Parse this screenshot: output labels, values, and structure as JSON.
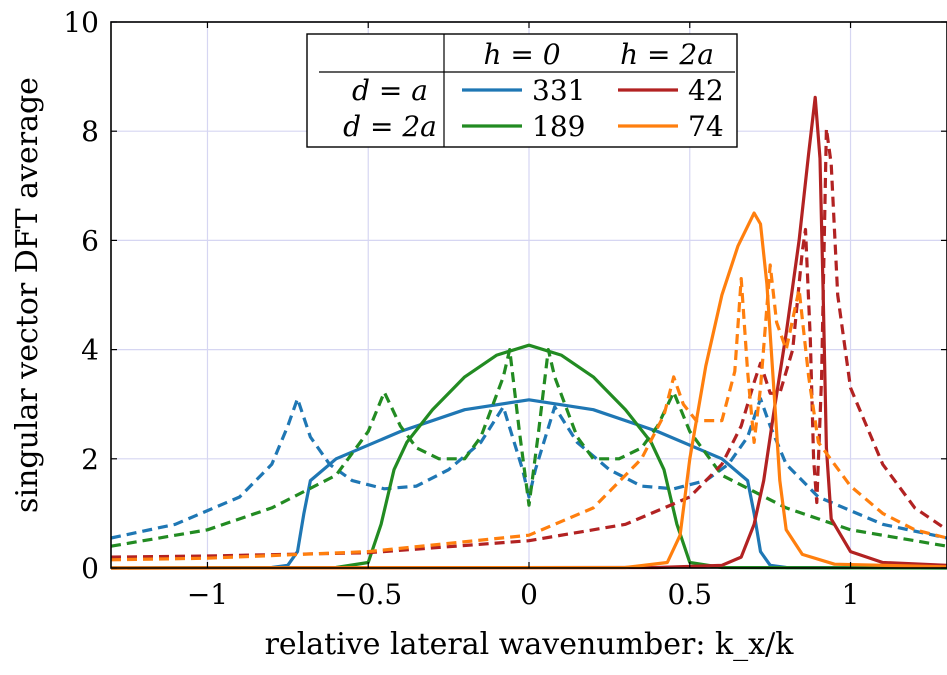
{
  "chart_data": {
    "type": "line",
    "xlabel": "relative lateral wavenumber: k_x/k",
    "ylabel": "singular vector DFT average",
    "xlim": [
      -1.3,
      1.3
    ],
    "ylim": [
      0,
      10
    ],
    "x_ticks": [
      "−1",
      "−0.5",
      "0",
      "0.5",
      "1"
    ],
    "y_ticks": [
      "0",
      "2",
      "4",
      "6",
      "8",
      "10"
    ],
    "grid": true,
    "legend": {
      "placement": "top-center",
      "type": "table",
      "column_headers": [
        "h = 0",
        "h = 2a"
      ],
      "row_headers": [
        "d = a",
        "d = 2a"
      ],
      "cells": [
        [
          "331",
          "42"
        ],
        [
          "189",
          "74"
        ]
      ]
    },
    "series": [
      {
        "name": "331",
        "color": "#1f77b4",
        "style": "solid",
        "points": [
          [
            -1.3,
            0
          ],
          [
            -0.8,
            0.01
          ],
          [
            -0.75,
            0.05
          ],
          [
            -0.72,
            0.3
          ],
          [
            -0.7,
            1.0
          ],
          [
            -0.68,
            1.6
          ],
          [
            -0.6,
            2.0
          ],
          [
            -0.4,
            2.5
          ],
          [
            -0.2,
            2.9
          ],
          [
            0,
            3.08
          ],
          [
            0.2,
            2.9
          ],
          [
            0.4,
            2.5
          ],
          [
            0.6,
            2.0
          ],
          [
            0.68,
            1.6
          ],
          [
            0.7,
            1.0
          ],
          [
            0.72,
            0.3
          ],
          [
            0.75,
            0.05
          ],
          [
            0.8,
            0.01
          ],
          [
            1.3,
            0
          ]
        ]
      },
      {
        "name": "331",
        "color": "#1f77b4",
        "style": "dashed",
        "points": [
          [
            -1.3,
            0.55
          ],
          [
            -1.1,
            0.8
          ],
          [
            -0.9,
            1.3
          ],
          [
            -0.8,
            1.9
          ],
          [
            -0.75,
            2.6
          ],
          [
            -0.72,
            3.1
          ],
          [
            -0.68,
            2.4
          ],
          [
            -0.62,
            1.9
          ],
          [
            -0.55,
            1.6
          ],
          [
            -0.45,
            1.45
          ],
          [
            -0.35,
            1.5
          ],
          [
            -0.25,
            1.8
          ],
          [
            -0.15,
            2.3
          ],
          [
            -0.08,
            2.95
          ],
          [
            -0.02,
            1.8
          ],
          [
            0,
            1.3
          ],
          [
            0.02,
            1.8
          ],
          [
            0.08,
            2.95
          ],
          [
            0.15,
            2.3
          ],
          [
            0.25,
            1.8
          ],
          [
            0.35,
            1.5
          ],
          [
            0.45,
            1.45
          ],
          [
            0.55,
            1.6
          ],
          [
            0.62,
            1.9
          ],
          [
            0.68,
            2.4
          ],
          [
            0.72,
            3.1
          ],
          [
            0.75,
            2.6
          ],
          [
            0.8,
            1.9
          ],
          [
            0.9,
            1.3
          ],
          [
            1.1,
            0.8
          ],
          [
            1.3,
            0.55
          ]
        ]
      },
      {
        "name": "189",
        "color": "#228B22",
        "style": "solid",
        "points": [
          [
            -1.3,
            0
          ],
          [
            -0.6,
            0.01
          ],
          [
            -0.5,
            0.1
          ],
          [
            -0.46,
            0.8
          ],
          [
            -0.42,
            1.8
          ],
          [
            -0.38,
            2.3
          ],
          [
            -0.3,
            2.9
          ],
          [
            -0.2,
            3.5
          ],
          [
            -0.1,
            3.9
          ],
          [
            0,
            4.08
          ],
          [
            0.1,
            3.9
          ],
          [
            0.2,
            3.5
          ],
          [
            0.3,
            2.9
          ],
          [
            0.38,
            2.3
          ],
          [
            0.42,
            1.8
          ],
          [
            0.46,
            0.8
          ],
          [
            0.5,
            0.1
          ],
          [
            0.6,
            0.01
          ],
          [
            1.3,
            0
          ]
        ]
      },
      {
        "name": "189",
        "color": "#228B22",
        "style": "dashed",
        "points": [
          [
            -1.3,
            0.4
          ],
          [
            -1.0,
            0.7
          ],
          [
            -0.8,
            1.1
          ],
          [
            -0.6,
            1.7
          ],
          [
            -0.5,
            2.5
          ],
          [
            -0.45,
            3.22
          ],
          [
            -0.4,
            2.6
          ],
          [
            -0.35,
            2.2
          ],
          [
            -0.28,
            2.0
          ],
          [
            -0.2,
            2.0
          ],
          [
            -0.15,
            2.4
          ],
          [
            -0.08,
            3.5
          ],
          [
            -0.06,
            4.0
          ],
          [
            -0.03,
            2.5
          ],
          [
            0,
            1.15
          ],
          [
            0.03,
            2.5
          ],
          [
            0.06,
            4.0
          ],
          [
            0.08,
            3.5
          ],
          [
            0.15,
            2.4
          ],
          [
            0.2,
            2.0
          ],
          [
            0.28,
            2.0
          ],
          [
            0.35,
            2.2
          ],
          [
            0.4,
            2.6
          ],
          [
            0.45,
            3.22
          ],
          [
            0.5,
            2.5
          ],
          [
            0.6,
            1.7
          ],
          [
            0.8,
            1.1
          ],
          [
            1.0,
            0.7
          ],
          [
            1.3,
            0.4
          ]
        ]
      },
      {
        "name": "42",
        "color": "#B22222",
        "style": "solid",
        "points": [
          [
            -1.3,
            0
          ],
          [
            0.4,
            0.01
          ],
          [
            0.6,
            0.05
          ],
          [
            0.66,
            0.2
          ],
          [
            0.7,
            0.8
          ],
          [
            0.73,
            1.6
          ],
          [
            0.76,
            2.8
          ],
          [
            0.8,
            4.3
          ],
          [
            0.84,
            6.0
          ],
          [
            0.87,
            7.6
          ],
          [
            0.89,
            8.62
          ],
          [
            0.905,
            7.5
          ],
          [
            0.915,
            5.0
          ],
          [
            0.925,
            2.2
          ],
          [
            0.94,
            0.9
          ],
          [
            1.0,
            0.3
          ],
          [
            1.1,
            0.1
          ],
          [
            1.3,
            0.05
          ]
        ]
      },
      {
        "name": "42",
        "color": "#B22222",
        "style": "dashed",
        "points": [
          [
            -1.3,
            0.2
          ],
          [
            -1.0,
            0.22
          ],
          [
            -0.5,
            0.28
          ],
          [
            0,
            0.5
          ],
          [
            0.3,
            0.8
          ],
          [
            0.5,
            1.3
          ],
          [
            0.6,
            1.9
          ],
          [
            0.66,
            2.6
          ],
          [
            0.7,
            3.4
          ],
          [
            0.72,
            3.75
          ],
          [
            0.75,
            3.2
          ],
          [
            0.78,
            3.2
          ],
          [
            0.82,
            4.0
          ],
          [
            0.85,
            5.8
          ],
          [
            0.86,
            6.2
          ],
          [
            0.875,
            4.2
          ],
          [
            0.885,
            2.0
          ],
          [
            0.895,
            1.2
          ],
          [
            0.91,
            3.5
          ],
          [
            0.925,
            8.05
          ],
          [
            0.94,
            7.4
          ],
          [
            0.96,
            5.0
          ],
          [
            1.0,
            3.3
          ],
          [
            1.1,
            1.9
          ],
          [
            1.2,
            1.1
          ],
          [
            1.3,
            0.7
          ]
        ]
      },
      {
        "name": "74",
        "color": "#FF7F0E",
        "style": "solid",
        "points": [
          [
            -1.3,
            0
          ],
          [
            0.3,
            0.01
          ],
          [
            0.43,
            0.1
          ],
          [
            0.47,
            0.6
          ],
          [
            0.5,
            2.0
          ],
          [
            0.55,
            3.7
          ],
          [
            0.6,
            5.0
          ],
          [
            0.65,
            5.9
          ],
          [
            0.7,
            6.5
          ],
          [
            0.72,
            6.3
          ],
          [
            0.74,
            5.2
          ],
          [
            0.76,
            3.4
          ],
          [
            0.78,
            1.6
          ],
          [
            0.8,
            0.7
          ],
          [
            0.85,
            0.25
          ],
          [
            0.95,
            0.07
          ],
          [
            1.3,
            0.02
          ]
        ]
      },
      {
        "name": "74",
        "color": "#FF7F0E",
        "style": "dashed",
        "points": [
          [
            -1.3,
            0.15
          ],
          [
            -1.0,
            0.18
          ],
          [
            -0.5,
            0.3
          ],
          [
            0,
            0.6
          ],
          [
            0.2,
            1.1
          ],
          [
            0.35,
            2.0
          ],
          [
            0.42,
            2.8
          ],
          [
            0.45,
            3.5
          ],
          [
            0.48,
            3.0
          ],
          [
            0.52,
            2.7
          ],
          [
            0.6,
            2.7
          ],
          [
            0.64,
            3.6
          ],
          [
            0.66,
            5.3
          ],
          [
            0.68,
            3.6
          ],
          [
            0.7,
            2.3
          ],
          [
            0.72,
            3.3
          ],
          [
            0.75,
            5.55
          ],
          [
            0.77,
            4.5
          ],
          [
            0.8,
            4.0
          ],
          [
            0.84,
            5.1
          ],
          [
            0.87,
            3.5
          ],
          [
            0.9,
            2.3
          ],
          [
            1.0,
            1.5
          ],
          [
            1.1,
            1.0
          ],
          [
            1.2,
            0.7
          ],
          [
            1.3,
            0.55
          ]
        ]
      }
    ]
  }
}
